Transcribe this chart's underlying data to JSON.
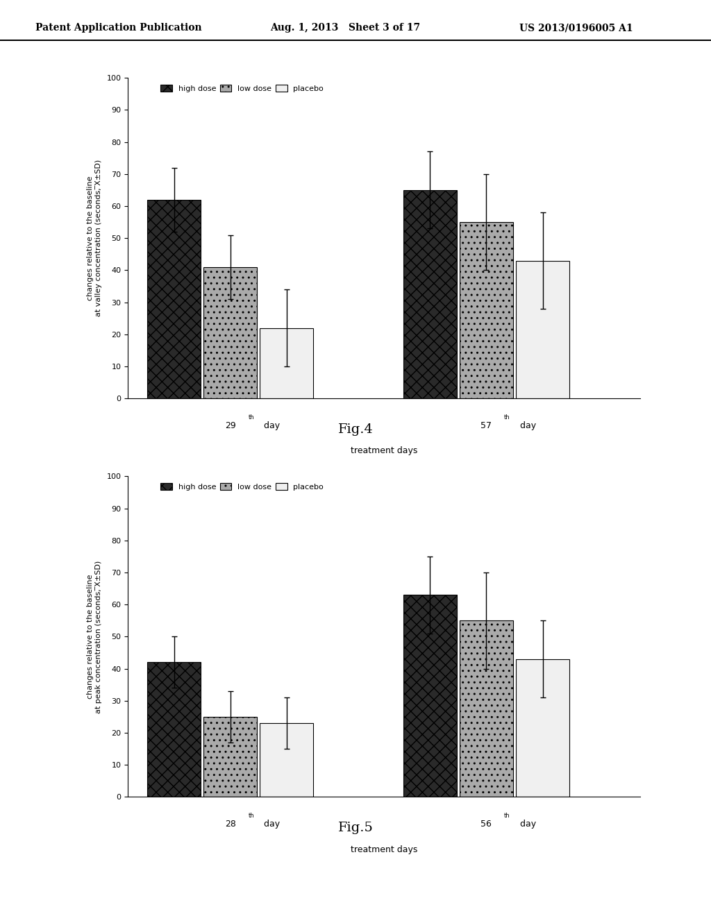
{
  "header_left": "Patent Application Publication",
  "header_mid": "Aug. 1, 2013   Sheet 3 of 17",
  "header_right": "US 2013/0196005 A1",
  "fig4": {
    "title": "Fig.4",
    "ylabel_line1": "changes relative to the baseline",
    "ylabel_line2": "at valley concentration (seconds, ̅X±SD)",
    "xlabel": "treatment days",
    "days": [
      "29th day",
      "57th day"
    ],
    "superscript_days": [
      "29",
      "57"
    ],
    "groups": [
      "high dose",
      "low dose",
      "placebo"
    ],
    "values": [
      [
        62,
        41,
        22
      ],
      [
        65,
        55,
        43
      ]
    ],
    "errors": [
      [
        10,
        10,
        12
      ],
      [
        12,
        15,
        15
      ]
    ],
    "ylim": [
      0,
      100
    ],
    "yticks": [
      0,
      10,
      20,
      30,
      40,
      50,
      60,
      70,
      80,
      90,
      100
    ]
  },
  "fig5": {
    "title": "Fig.5",
    "ylabel_line1": "changes relative to the baseline",
    "ylabel_line2": "at peak concentration (seconds, ̅X±SD)",
    "xlabel": "treatment days",
    "days": [
      "28th day",
      "56th day"
    ],
    "superscript_days": [
      "28",
      "56"
    ],
    "groups": [
      "high dose",
      "low dose",
      "placebo"
    ],
    "values": [
      [
        42,
        25,
        23
      ],
      [
        63,
        55,
        43
      ]
    ],
    "errors": [
      [
        8,
        8,
        8
      ],
      [
        12,
        15,
        12
      ]
    ],
    "ylim": [
      0,
      100
    ],
    "yticks": [
      0,
      10,
      20,
      30,
      40,
      50,
      60,
      70,
      80,
      90,
      100
    ]
  },
  "colors": {
    "high_dose": "#2a2a2a",
    "low_dose": "#aaaaaa",
    "placebo": "#f0f0f0"
  },
  "background_color": "#ffffff"
}
